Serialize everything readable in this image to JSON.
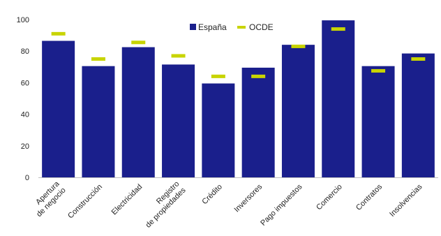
{
  "chart_data": {
    "type": "bar",
    "title": "",
    "categories": [
      "Apertura de negocio",
      "Construcción",
      "Electricidad",
      "Registro de propiedades",
      "Crédito",
      "Inversores",
      "Pago impuestos",
      "Comercio",
      "Contratos",
      "Insolvencias"
    ],
    "series": [
      {
        "name": "España",
        "kind": "bar",
        "color": "#1a1f8c",
        "values": [
          86.5,
          70.5,
          82.5,
          71.5,
          59.5,
          69.5,
          84,
          99.5,
          70.5,
          78.5
        ]
      },
      {
        "name": "OCDE",
        "kind": "marker",
        "color": "#c8d400",
        "values": [
          91,
          75,
          85.5,
          77,
          64,
          64,
          83,
          94,
          67.5,
          75
        ]
      }
    ],
    "ylim": [
      0,
      100
    ],
    "yticks": [
      0,
      20,
      40,
      60,
      80,
      100
    ],
    "xlabel": "",
    "ylabel": "",
    "grid": false,
    "legend_position": "top-center"
  }
}
